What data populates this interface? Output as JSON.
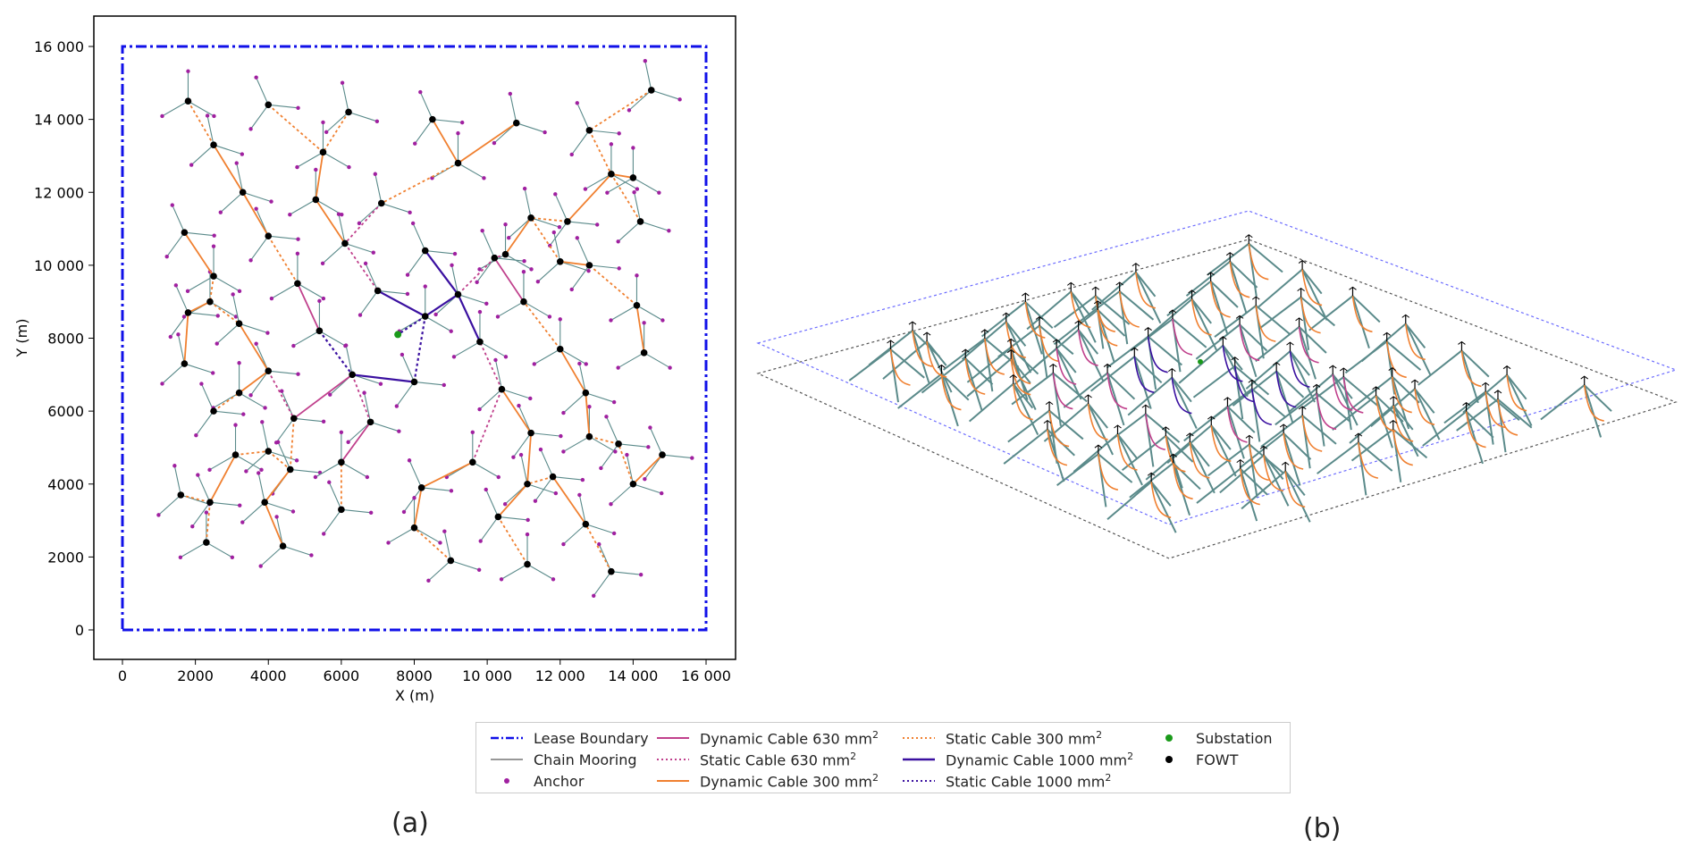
{
  "colors": {
    "lease_boundary": "#1010e8",
    "mooring": "#5a8a8a",
    "anchor": "#a020a0",
    "dyn630": "#c0408c",
    "dyn300": "#f08030",
    "dyn1000": "#3a10a0",
    "substation": "#1a9a1a",
    "fowt": "#000000"
  },
  "chart_data": [
    {
      "type": "scatter",
      "panel": "(a)",
      "xlabel": "X (m)",
      "ylabel": "Y (m)",
      "xlim": [
        -800,
        16800
      ],
      "ylim": [
        -800,
        16800
      ],
      "xticks": [
        0,
        2000,
        4000,
        6000,
        8000,
        10000,
        12000,
        14000,
        16000
      ],
      "yticks": [
        0,
        2000,
        4000,
        6000,
        8000,
        10000,
        12000,
        14000,
        16000
      ],
      "xtick_labels": [
        "0",
        "2000",
        "4000",
        "6000",
        "8000",
        "10 000",
        "12 000",
        "14 000",
        "16 000"
      ],
      "ytick_labels": [
        "0",
        "2000",
        "4000",
        "6000",
        "8000",
        "10 000",
        "12 000",
        "14 000",
        "16 000"
      ],
      "grid": false,
      "lease_boundary": {
        "x": [
          0,
          16000,
          16000,
          0,
          0
        ],
        "y": [
          0,
          0,
          16000,
          16000,
          0
        ]
      },
      "substation": {
        "x": 7550,
        "y": 8100
      },
      "fowt": {
        "x": [
          1800,
          2500,
          4000,
          5500,
          6200,
          8500,
          9200,
          10800,
          12800,
          14000,
          14500,
          1700,
          2500,
          3300,
          4000,
          5300,
          7100,
          8300,
          10500,
          11200,
          12200,
          13400,
          14200,
          1800,
          2400,
          3200,
          4000,
          4800,
          6100,
          7000,
          8300,
          9200,
          10200,
          11000,
          12000,
          12800,
          14100,
          1700,
          2500,
          3200,
          4000,
          4700,
          5400,
          6300,
          8000,
          9800,
          10400,
          11200,
          12000,
          12700,
          13600,
          14300,
          1600,
          2400,
          3100,
          3900,
          4600,
          6000,
          6800,
          8200,
          9600,
          11100,
          11800,
          12800,
          14000,
          14800,
          2300,
          4400,
          6000,
          8000,
          9000,
          10300,
          11100,
          12700,
          13400
        ],
        "y": [
          14500,
          13300,
          14400,
          13100,
          14200,
          14000,
          12800,
          13900,
          13700,
          12400,
          14800,
          10900,
          9700,
          12000,
          10800,
          11800,
          11700,
          10400,
          10300,
          11300,
          11200,
          12500,
          11200,
          8700,
          9000,
          8400,
          7100,
          9500,
          10600,
          9300,
          8600,
          9200,
          10200,
          9000,
          10100,
          10000,
          8900,
          7300,
          6000,
          6500,
          4900,
          5800,
          8200,
          7000,
          6800,
          7900,
          6600,
          5400,
          7700,
          6500,
          5100,
          7600,
          3700,
          3500,
          4800,
          3500,
          4400,
          4600,
          5700,
          3900,
          4600,
          4000,
          4200,
          5300,
          4000,
          4800,
          2400,
          2300,
          3300,
          2800,
          1900,
          3100,
          1800,
          2900,
          1600
        ]
      },
      "cable_types": [
        "Dynamic Cable 630 mm²",
        "Static Cable 630 mm²",
        "Dynamic Cable 300 mm²",
        "Static Cable 300 mm²",
        "Dynamic Cable 1000 mm²",
        "Static Cable 1000 mm²"
      ],
      "mooring_type": "Chain Mooring",
      "legend": [
        "Lease Boundary",
        "Chain Mooring",
        "Anchor",
        "Dynamic Cable 630 mm²",
        "Static Cable 630 mm²",
        "Dynamic Cable 300 mm²",
        "Static Cable 300 mm²",
        "Dynamic Cable 1000 mm²",
        "Static Cable 1000 mm²",
        "Substation",
        "FOWT"
      ],
      "legend_placement": "below"
    },
    {
      "type": "scatter",
      "panel": "(b)",
      "view": "3d-isometric",
      "xlabel": "",
      "ylabel": "",
      "grid": false,
      "note_shape": "same wind farm layout in perspective view with lease boundary and seabed outline"
    }
  ],
  "legend": {
    "lease_boundary": "Lease Boundary",
    "chain_mooring": "Chain Mooring",
    "anchor": "Anchor",
    "dyn630": "Dynamic Cable 630 mm",
    "static630": "Static Cable 630 mm",
    "dyn300": "Dynamic Cable 300 mm",
    "static300": "Static Cable 300 mm",
    "dyn1000": "Dynamic Cable 1000 mm",
    "static1000": "Static Cable 1000 mm",
    "sup": "2",
    "substation": "Substation",
    "fowt": "FOWT"
  },
  "panels": {
    "a": "(a)",
    "b": "(b)"
  }
}
